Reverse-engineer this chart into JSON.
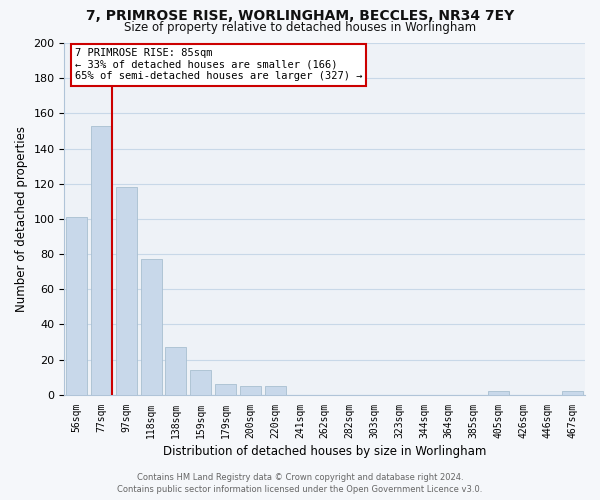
{
  "title": "7, PRIMROSE RISE, WORLINGHAM, BECCLES, NR34 7EY",
  "subtitle": "Size of property relative to detached houses in Worlingham",
  "xlabel": "Distribution of detached houses by size in Worlingham",
  "ylabel": "Number of detached properties",
  "bar_color": "#c8d8ea",
  "bar_edge_color": "#a8bfd0",
  "categories": [
    "56sqm",
    "77sqm",
    "97sqm",
    "118sqm",
    "138sqm",
    "159sqm",
    "179sqm",
    "200sqm",
    "220sqm",
    "241sqm",
    "262sqm",
    "282sqm",
    "303sqm",
    "323sqm",
    "344sqm",
    "364sqm",
    "385sqm",
    "405sqm",
    "426sqm",
    "446sqm",
    "467sqm"
  ],
  "values": [
    101,
    153,
    118,
    77,
    27,
    14,
    6,
    5,
    5,
    0,
    0,
    0,
    0,
    0,
    0,
    0,
    0,
    2,
    0,
    0,
    2
  ],
  "ylim": [
    0,
    200
  ],
  "yticks": [
    0,
    20,
    40,
    60,
    80,
    100,
    120,
    140,
    160,
    180,
    200
  ],
  "property_line_color": "#cc0000",
  "annotation_title": "7 PRIMROSE RISE: 85sqm",
  "annotation_line1": "← 33% of detached houses are smaller (166)",
  "annotation_line2": "65% of semi-detached houses are larger (327) →",
  "annotation_box_facecolor": "#ffffff",
  "annotation_box_edgecolor": "#cc0000",
  "footer_line1": "Contains HM Land Registry data © Crown copyright and database right 2024.",
  "footer_line2": "Contains public sector information licensed under the Open Government Licence v3.0.",
  "grid_color": "#c8d8e8",
  "bg_color": "#eef2f7",
  "fig_bg_color": "#f5f7fa"
}
